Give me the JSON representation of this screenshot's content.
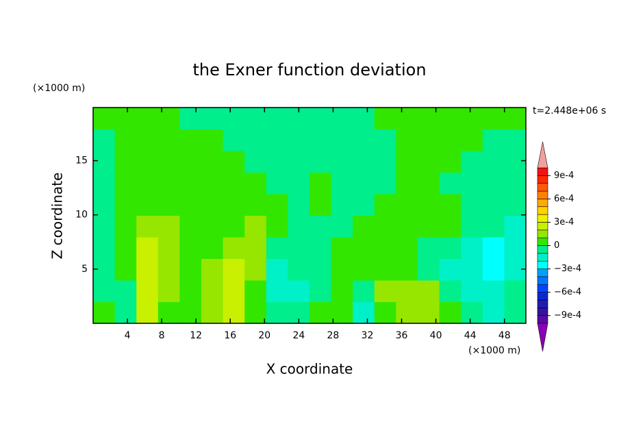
{
  "chart_data": {
    "type": "contour",
    "title": "the Exner function deviation",
    "x_label": "X coordinate",
    "y_label": "Z coordinate",
    "x_unit": "(×1000 m)",
    "y_unit": "(×1000 m)",
    "time_label": "t=2.448e+06 s",
    "xlim": [
      0,
      50.5
    ],
    "ylim": [
      0,
      19.9
    ],
    "xticks": [
      4,
      8,
      12,
      16,
      20,
      24,
      28,
      32,
      36,
      40,
      44,
      48
    ],
    "yticks": [
      5,
      10,
      15
    ],
    "levels": [
      -0.001,
      -0.0009,
      -0.0008,
      -0.0007,
      -0.0006,
      -0.0005,
      -0.0004,
      -0.0003,
      -0.0002,
      -0.0001,
      0,
      0.0001,
      0.0002,
      0.0003,
      0.0004,
      0.0005,
      0.0006,
      0.0007,
      0.0008,
      0.0009,
      0.001
    ],
    "colors": [
      "#5a0aa0",
      "#3214a0",
      "#1e1eb4",
      "#0a28d2",
      "#0046ff",
      "#0078ff",
      "#00a0ff",
      "#00ffff",
      "#00f0c8",
      "#00ee8c",
      "#33e600",
      "#96e600",
      "#c8f000",
      "#f0f000",
      "#ffd200",
      "#ffaa00",
      "#ff8200",
      "#ff5a00",
      "#ff2800",
      "#f01414"
    ],
    "under_color": "#8c00b4",
    "over_color": "#f0a0a0",
    "colorbar_ticks": [
      {
        "value": 0.0009,
        "label": "9e-4"
      },
      {
        "value": 0.0006,
        "label": "6e-4"
      },
      {
        "value": 0.0003,
        "label": "3e-4"
      },
      0,
      {
        "value": -0.0003,
        "label": "−3e-4"
      },
      {
        "value": -0.0006,
        "label": "−6e-4"
      },
      {
        "value": -0.0009,
        "label": "−9e-4"
      }
    ],
    "z": [
      [
        5e-05,
        -5e-05,
        0.00025,
        5e-05,
        5e-05,
        0.00015,
        0.00025,
        5e-05,
        -5e-05,
        -5e-05,
        5e-05,
        5e-05,
        -0.00015,
        5e-05,
        0.00015,
        0.00015,
        5e-05,
        -5e-05,
        -0.00015,
        -5e-05
      ],
      [
        -5e-05,
        -5e-05,
        0.00025,
        0.00015,
        5e-05,
        0.00015,
        0.00025,
        5e-05,
        -0.00015,
        -0.00015,
        -5e-05,
        5e-05,
        -5e-05,
        0.00015,
        0.00015,
        0.00015,
        -5e-05,
        -0.00015,
        -0.00015,
        -5e-05
      ],
      [
        -5e-05,
        5e-05,
        0.00025,
        0.00015,
        5e-05,
        0.00015,
        0.00025,
        0.00015,
        -0.00015,
        -5e-05,
        -5e-05,
        5e-05,
        5e-05,
        5e-05,
        5e-05,
        -5e-05,
        -0.00015,
        -0.00015,
        -0.00025,
        -0.00015
      ],
      [
        -5e-05,
        5e-05,
        0.00025,
        0.00015,
        5e-05,
        5e-05,
        0.00015,
        0.00015,
        -5e-05,
        -5e-05,
        -5e-05,
        5e-05,
        5e-05,
        5e-05,
        5e-05,
        -5e-05,
        -5e-05,
        -0.00015,
        -0.00025,
        -0.00015
      ],
      [
        -5e-05,
        5e-05,
        0.00015,
        0.00015,
        5e-05,
        5e-05,
        5e-05,
        0.00015,
        5e-05,
        -5e-05,
        -5e-05,
        -5e-05,
        5e-05,
        5e-05,
        5e-05,
        5e-05,
        5e-05,
        -5e-05,
        -5e-05,
        -0.00015
      ],
      [
        -5e-05,
        5e-05,
        5e-05,
        5e-05,
        5e-05,
        5e-05,
        5e-05,
        5e-05,
        5e-05,
        -5e-05,
        5e-05,
        -5e-05,
        -5e-05,
        5e-05,
        5e-05,
        5e-05,
        5e-05,
        -5e-05,
        -5e-05,
        -5e-05
      ],
      [
        -5e-05,
        5e-05,
        5e-05,
        5e-05,
        5e-05,
        5e-05,
        5e-05,
        5e-05,
        -5e-05,
        -5e-05,
        5e-05,
        -5e-05,
        -5e-05,
        -5e-05,
        5e-05,
        5e-05,
        -5e-05,
        -5e-05,
        -5e-05,
        -5e-05
      ],
      [
        -5e-05,
        5e-05,
        5e-05,
        5e-05,
        5e-05,
        5e-05,
        5e-05,
        -5e-05,
        -5e-05,
        -5e-05,
        -5e-05,
        -5e-05,
        -5e-05,
        -5e-05,
        5e-05,
        5e-05,
        5e-05,
        -5e-05,
        -5e-05,
        -5e-05
      ],
      [
        -5e-05,
        5e-05,
        5e-05,
        5e-05,
        5e-05,
        5e-05,
        -5e-05,
        -5e-05,
        -5e-05,
        -5e-05,
        -5e-05,
        -5e-05,
        -5e-05,
        -5e-05,
        5e-05,
        5e-05,
        5e-05,
        5e-05,
        -5e-05,
        -5e-05
      ],
      [
        5e-05,
        5e-05,
        5e-05,
        5e-05,
        -5e-05,
        -5e-05,
        -5e-05,
        -5e-05,
        -5e-05,
        -5e-05,
        -5e-05,
        -5e-05,
        -5e-05,
        5e-05,
        5e-05,
        5e-05,
        5e-05,
        5e-05,
        5e-05,
        5e-05
      ]
    ]
  }
}
